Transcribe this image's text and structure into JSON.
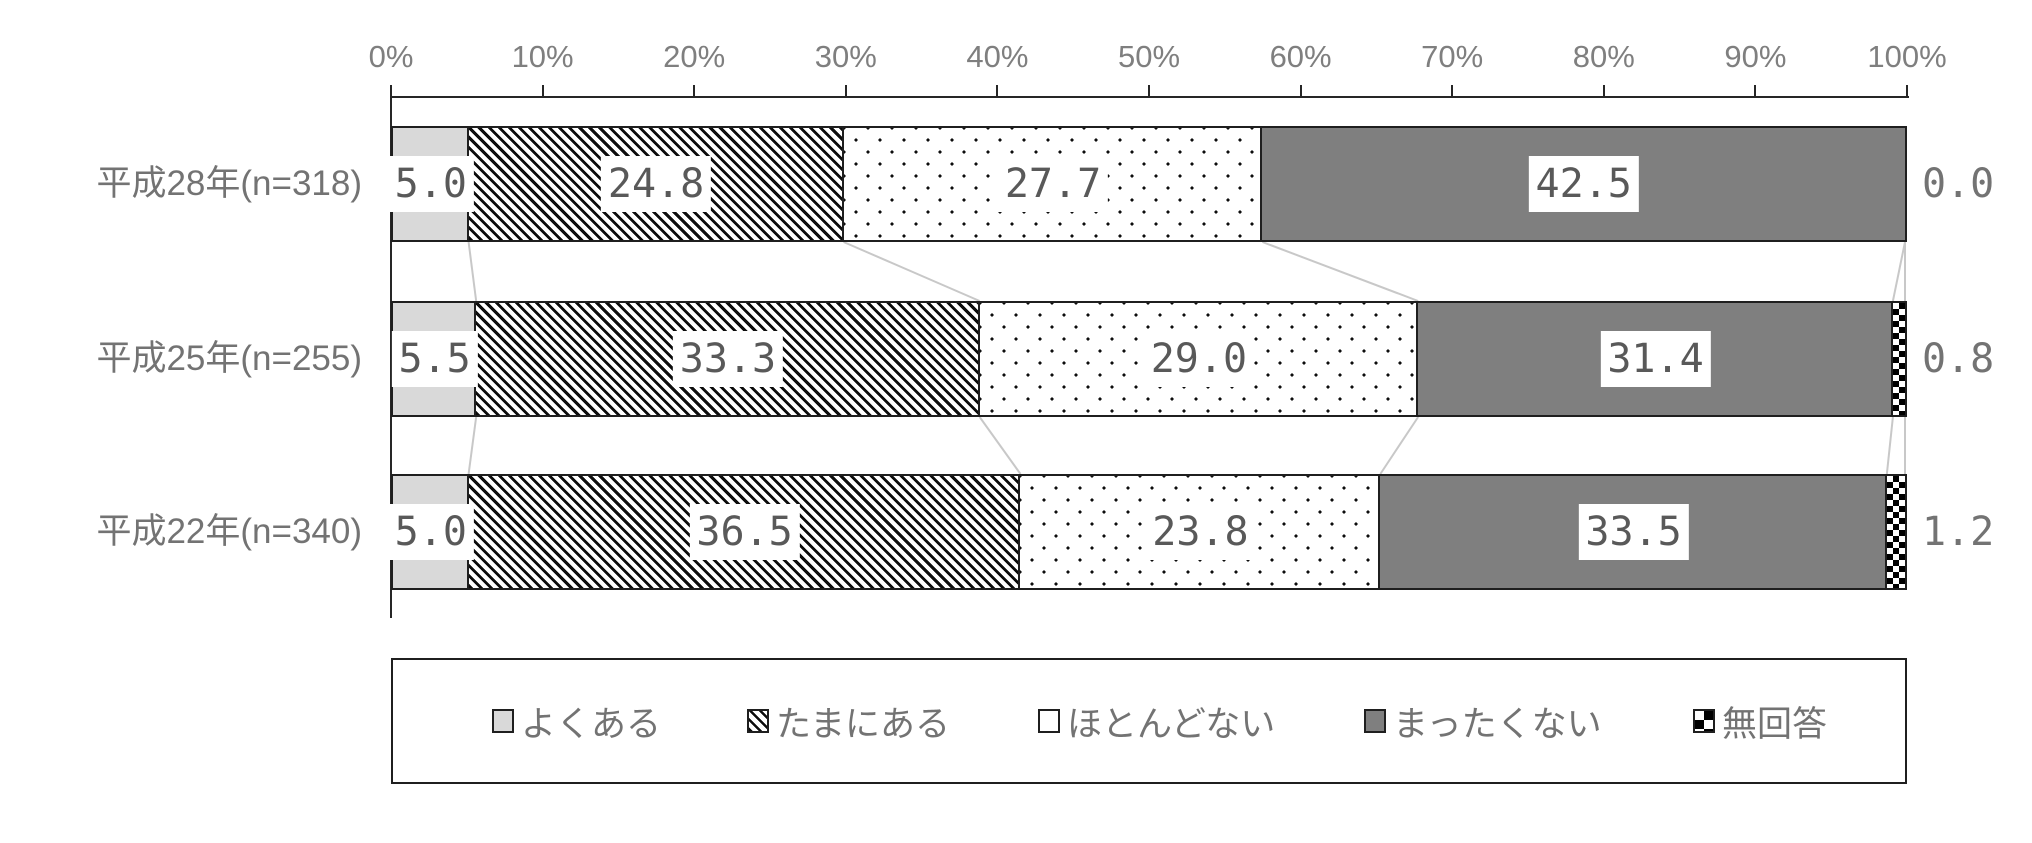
{
  "chart_data": {
    "type": "bar",
    "orientation": "horizontal",
    "stacked": true,
    "value_unit": "%",
    "categories": [
      "平成28年(n=318)",
      "平成25年(n=255)",
      "平成22年(n=340)"
    ],
    "series": [
      {
        "name": "よくある",
        "pattern": "light-gray",
        "values": [
          5.0,
          5.5,
          5.0
        ]
      },
      {
        "name": "たまにある",
        "pattern": "diagonal-hatch",
        "values": [
          24.8,
          33.3,
          36.5
        ]
      },
      {
        "name": "ほとんどない",
        "pattern": "dotted",
        "values": [
          27.7,
          29.0,
          23.8
        ]
      },
      {
        "name": "まったくない",
        "pattern": "dark-gray",
        "values": [
          42.5,
          31.4,
          33.5
        ]
      },
      {
        "name": "無回答",
        "pattern": "checkered",
        "values": [
          0.0,
          0.8,
          1.2
        ]
      }
    ],
    "x_axis": {
      "position": "top",
      "min": 0,
      "max": 100,
      "tick_labels": [
        "0%",
        "10%",
        "20%",
        "30%",
        "40%",
        "50%",
        "60%",
        "70%",
        "80%",
        "90%",
        "100%"
      ],
      "grid": false
    },
    "legend": {
      "position": "bottom",
      "labels": [
        "よくある",
        "たまにある",
        "ほとんどない",
        "まったくない",
        "無回答"
      ]
    },
    "annotations": {
      "outside_right_labels": [
        "0.0",
        "0.8",
        "1.2"
      ],
      "value_label_decimals": 1
    }
  },
  "colors": {
    "background": "#ffffff",
    "axis": "#262626",
    "bar_border": "#1f1f1f",
    "light_gray_fill": "#d9d9d9",
    "dark_gray_fill": "#7f7f7f",
    "pattern_black": "#0d0d0d",
    "connector_line": "#c8c8c8",
    "tick_label_text": "#7f7f7f",
    "category_label_text": "#737373",
    "value_label_text": "#595959"
  }
}
